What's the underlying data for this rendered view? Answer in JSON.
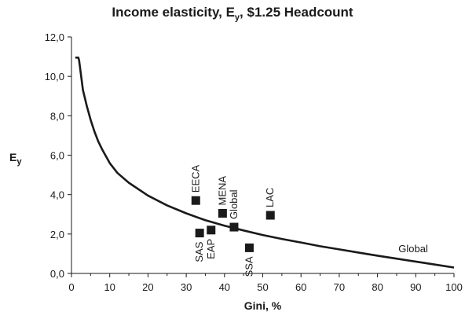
{
  "chart_data": {
    "type": "scatter",
    "title_main": "Income elasticity, E",
    "title_sub": "y",
    "title_rest": ", $1.25 Headcount",
    "xlabel": "Gini, %",
    "ylabel_main": "E",
    "ylabel_sub": "y",
    "xlim": [
      0,
      100
    ],
    "ylim": [
      0,
      12
    ],
    "xticks": [
      0,
      10,
      20,
      30,
      40,
      50,
      60,
      70,
      80,
      90,
      100
    ],
    "yticks": [
      "0,0",
      "2,0",
      "4,0",
      "6,0",
      "8,0",
      "10,0",
      "12,0"
    ],
    "ytick_values": [
      0,
      2,
      4,
      6,
      8,
      10,
      12
    ],
    "grid": false,
    "series": [
      {
        "name": "Global",
        "kind": "line",
        "x": [
          1,
          1.8,
          2,
          3,
          4,
          5,
          6,
          7,
          8,
          10,
          12,
          15,
          20,
          25,
          30,
          35,
          40,
          45,
          50,
          55,
          60,
          65,
          70,
          75,
          80,
          85,
          90,
          95,
          100
        ],
        "y": [
          10.95,
          10.95,
          10.8,
          9.3,
          8.5,
          7.8,
          7.2,
          6.7,
          6.3,
          5.6,
          5.1,
          4.6,
          3.95,
          3.45,
          3.05,
          2.7,
          2.42,
          2.18,
          1.95,
          1.75,
          1.57,
          1.38,
          1.22,
          1.06,
          0.9,
          0.75,
          0.6,
          0.45,
          0.3
        ]
      },
      {
        "kind": "points",
        "points": [
          {
            "label": "EECA",
            "x": 32.5,
            "y": 3.7,
            "label_pos": "above"
          },
          {
            "label": "SAS",
            "x": 33.5,
            "y": 2.05,
            "label_pos": "below"
          },
          {
            "label": "EAP",
            "x": 36.5,
            "y": 2.2,
            "label_pos": "below"
          },
          {
            "label": "MENA",
            "x": 39.5,
            "y": 3.05,
            "label_pos": "above"
          },
          {
            "label": "Global",
            "x": 42.5,
            "y": 2.35,
            "label_pos": "above"
          },
          {
            "label": "SSA",
            "x": 46.5,
            "y": 1.3,
            "label_pos": "below"
          },
          {
            "label": "LAC",
            "x": 52,
            "y": 2.95,
            "label_pos": "above"
          }
        ]
      }
    ],
    "line_label": "Global"
  }
}
